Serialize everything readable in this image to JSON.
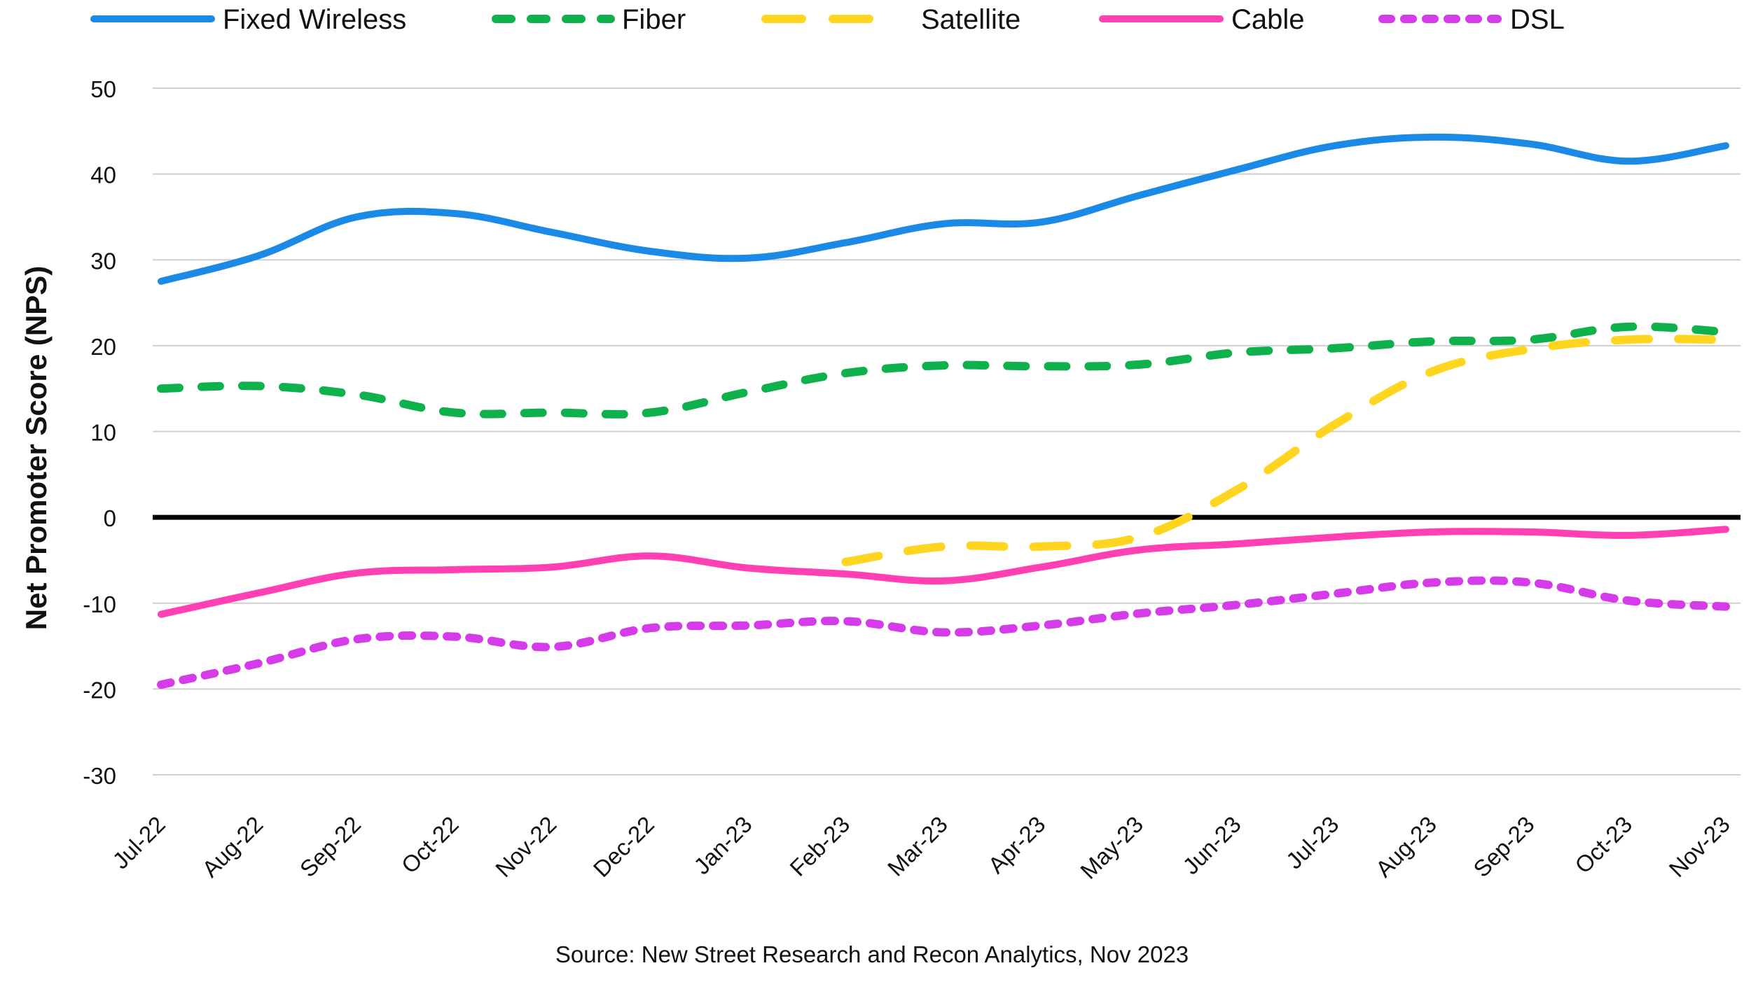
{
  "chart_data": {
    "type": "line",
    "title": "",
    "ylabel": "Net Promoter Score (NPS)",
    "xlabel": "",
    "ylim": [
      -30,
      50
    ],
    "yticks": [
      50,
      40,
      30,
      20,
      10,
      0,
      -10,
      -20,
      -30
    ],
    "grid": true,
    "legend_position": "top",
    "categories": [
      "Jul-22",
      "Aug-22",
      "Sep-22",
      "Oct-22",
      "Nov-22",
      "Dec-22",
      "Jan-23",
      "Feb-23",
      "Mar-23",
      "Apr-23",
      "May-23",
      "Jun-23",
      "Jul-23",
      "Aug-23",
      "Sep-23",
      "Oct-23",
      "Nov-23"
    ],
    "series": [
      {
        "name": "Fixed Wireless",
        "color": "#1a8ae6",
        "style": "solid",
        "values": [
          27.5,
          30.5,
          35,
          35.4,
          33.2,
          31,
          30.2,
          32,
          34.2,
          34.4,
          37.5,
          40.5,
          43.3,
          44.3,
          43.5,
          41.5,
          43.3
        ]
      },
      {
        "name": "Fiber",
        "color": "#0fb14c",
        "style": "dashed",
        "values": [
          15,
          15.3,
          14.3,
          12.2,
          12.2,
          12.2,
          14.6,
          16.8,
          17.7,
          17.6,
          17.8,
          19.2,
          19.7,
          20.5,
          20.7,
          22.2,
          21.6
        ]
      },
      {
        "name": "Satellite",
        "color": "#ffd51f",
        "style": "longdash",
        "values": [
          null,
          null,
          null,
          null,
          null,
          null,
          null,
          -5.2,
          -3.4,
          -3.4,
          -2.3,
          3.2,
          10.8,
          17,
          19.6,
          20.7,
          20.7
        ]
      },
      {
        "name": "Cable",
        "color": "#ff3fb4",
        "style": "solid",
        "values": [
          -11.3,
          -8.8,
          -6.5,
          -6.1,
          -5.8,
          -4.5,
          -5.9,
          -6.6,
          -7.4,
          -5.8,
          -3.8,
          -3.1,
          -2.3,
          -1.7,
          -1.7,
          -2.1,
          -1.4
        ]
      },
      {
        "name": "DSL",
        "color": "#d63bea",
        "style": "dotted",
        "values": [
          -19.5,
          -17,
          -14.2,
          -13.9,
          -15.1,
          -12.9,
          -12.6,
          -12.1,
          -13.4,
          -12.6,
          -11.2,
          -10.2,
          -8.9,
          -7.6,
          -7.6,
          -9.7,
          -10.4
        ]
      }
    ]
  },
  "source": "Source: New Street Research and Recon Analytics, Nov 2023"
}
